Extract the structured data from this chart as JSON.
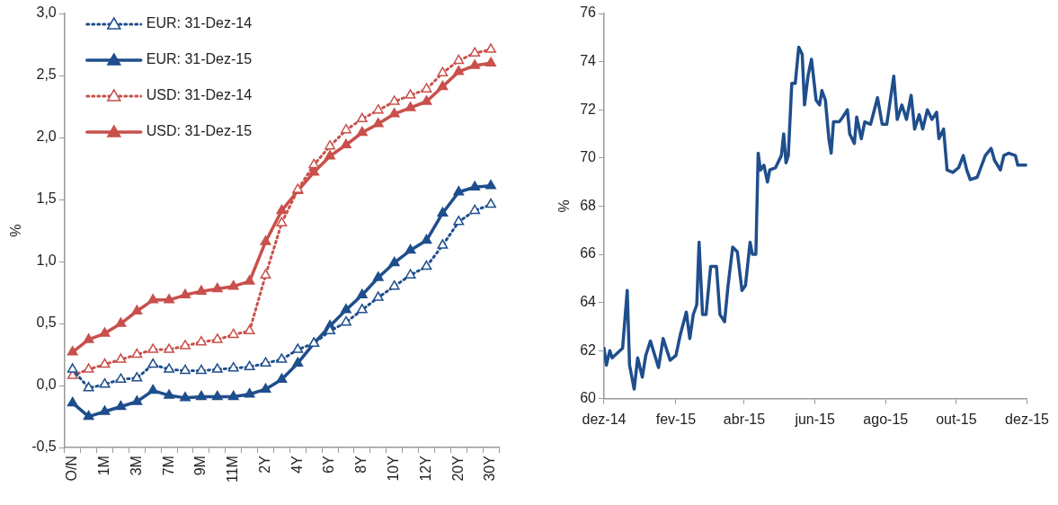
{
  "chart_data": [
    {
      "type": "line",
      "ylabel": "%",
      "legend": "top left",
      "marker": "triangle",
      "grid": false,
      "categories": [
        "O/N",
        null,
        "1M",
        null,
        "3M",
        null,
        "7M",
        null,
        "9M",
        null,
        "11M",
        null,
        "2Y",
        null,
        "4Y",
        null,
        "6Y",
        null,
        "8Y",
        null,
        "10Y",
        null,
        "12Y",
        null,
        "20Y",
        null,
        "30Y"
      ],
      "ylim": [
        -0.5,
        3.0
      ],
      "yticks": [
        {
          "value": -0.5,
          "label": "-0,5"
        },
        {
          "value": 0,
          "label": "0,0"
        },
        {
          "value": 0.5,
          "label": "0,5"
        },
        {
          "value": 1.0,
          "label": "1,0"
        },
        {
          "value": 1.5,
          "label": "1,5"
        },
        {
          "value": 2.0,
          "label": "2,0"
        },
        {
          "value": 2.5,
          "label": "2,5"
        },
        {
          "value": 3.0,
          "label": "3,0"
        }
      ],
      "series": [
        {
          "name": "EUR: 31-Dez-14",
          "color": "#1f4e8c",
          "line_style": "dotted",
          "values": [
            0.13,
            -0.02,
            0.01,
            0.05,
            0.06,
            0.17,
            0.13,
            0.12,
            0.12,
            0.13,
            0.14,
            0.15,
            0.18,
            0.21,
            0.29,
            0.34,
            0.44,
            0.51,
            0.61,
            0.71,
            0.8,
            0.89,
            0.96,
            1.13,
            1.32,
            1.41,
            1.46
          ]
        },
        {
          "name": "EUR: 31-Dez-15",
          "color": "#1f4e8c",
          "line_style": "solid",
          "values": [
            -0.14,
            -0.25,
            -0.21,
            -0.17,
            -0.13,
            -0.04,
            -0.08,
            -0.1,
            -0.09,
            -0.09,
            -0.09,
            -0.07,
            -0.03,
            0.05,
            0.18,
            0.34,
            0.48,
            0.61,
            0.73,
            0.87,
            0.99,
            1.09,
            1.17,
            1.39,
            1.56,
            1.6,
            1.61
          ]
        },
        {
          "name": "USD: 31-Dez-14",
          "color": "#c9504b",
          "line_style": "dotted",
          "values": [
            0.08,
            0.13,
            0.17,
            0.21,
            0.25,
            0.29,
            0.29,
            0.32,
            0.35,
            0.37,
            0.41,
            0.44,
            0.89,
            1.31,
            1.58,
            1.78,
            1.93,
            2.06,
            2.15,
            2.22,
            2.29,
            2.34,
            2.39,
            2.52,
            2.62,
            2.68,
            2.71
          ]
        },
        {
          "name": "USD: 31-Dez-15",
          "color": "#c9504b",
          "line_style": "solid",
          "values": [
            0.27,
            0.37,
            0.42,
            0.5,
            0.6,
            0.69,
            0.69,
            0.73,
            0.76,
            0.78,
            0.8,
            0.84,
            1.16,
            1.41,
            1.57,
            1.72,
            1.85,
            1.94,
            2.04,
            2.11,
            2.19,
            2.24,
            2.29,
            2.41,
            2.53,
            2.58,
            2.6
          ]
        }
      ]
    },
    {
      "type": "line",
      "ylabel": "%",
      "legend": false,
      "marker": "none",
      "grid": false,
      "color": "#1f4e8c",
      "xlim": [
        "2014-12-01",
        "2015-12-01"
      ],
      "xticks": [
        {
          "value": "2014-12-01",
          "label": "dez-14"
        },
        {
          "value": "2015-02-01",
          "label": "fev-15"
        },
        {
          "value": "2015-04-01",
          "label": "abr-15"
        },
        {
          "value": "2015-06-01",
          "label": "jun-15"
        },
        {
          "value": "2015-08-01",
          "label": "ago-15"
        },
        {
          "value": "2015-10-01",
          "label": "out-15"
        },
        {
          "value": "2015-12-01",
          "label": "dez-15"
        }
      ],
      "ylim": [
        60,
        76
      ],
      "yticks": [
        60,
        62,
        64,
        66,
        68,
        70,
        72,
        74,
        76
      ],
      "x": [
        "2014-12-01",
        "2014-12-03",
        "2014-12-06",
        "2014-12-08",
        "2014-12-17",
        "2014-12-21",
        "2014-12-23",
        "2014-12-27",
        "2014-12-30",
        "2015-01-03",
        "2015-01-06",
        "2015-01-10",
        "2015-01-17",
        "2015-01-21",
        "2015-01-27",
        "2015-02-01",
        "2015-02-05",
        "2015-02-10",
        "2015-02-13",
        "2015-02-16",
        "2015-02-19",
        "2015-02-21",
        "2015-02-24",
        "2015-02-27",
        "2015-03-03",
        "2015-03-08",
        "2015-03-11",
        "2015-03-15",
        "2015-03-18",
        "2015-03-22",
        "2015-03-26",
        "2015-03-30",
        "2015-04-02",
        "2015-04-06",
        "2015-04-08",
        "2015-04-11",
        "2015-04-13",
        "2015-04-15",
        "2015-04-18",
        "2015-04-21",
        "2015-04-23",
        "2015-04-28",
        "2015-05-03",
        "2015-05-05",
        "2015-05-07",
        "2015-05-09",
        "2015-05-12",
        "2015-05-15",
        "2015-05-18",
        "2015-05-21",
        "2015-05-23",
        "2015-05-26",
        "2015-05-29",
        "2015-06-02",
        "2015-06-05",
        "2015-06-07",
        "2015-06-10",
        "2015-06-13",
        "2015-06-15",
        "2015-06-17",
        "2015-06-22",
        "2015-06-25",
        "2015-06-29",
        "2015-07-01",
        "2015-07-05",
        "2015-07-07",
        "2015-07-11",
        "2015-07-14",
        "2015-07-19",
        "2015-07-25",
        "2015-07-29",
        "2015-08-02",
        "2015-08-08",
        "2015-08-11",
        "2015-08-15",
        "2015-08-19",
        "2015-08-23",
        "2015-08-26",
        "2015-08-30",
        "2015-09-02",
        "2015-09-06",
        "2015-09-10",
        "2015-09-14",
        "2015-09-16",
        "2015-09-20",
        "2015-09-23",
        "2015-09-28",
        "2015-10-03",
        "2015-10-07",
        "2015-10-10",
        "2015-10-13",
        "2015-10-19",
        "2015-10-26",
        "2015-10-31",
        "2015-11-03",
        "2015-11-08",
        "2015-11-11",
        "2015-11-15",
        "2015-11-21",
        "2015-11-23",
        "2015-12-01"
      ],
      "values": [
        62.1,
        61.4,
        62.0,
        61.7,
        62.1,
        64.5,
        61.4,
        60.4,
        61.7,
        60.9,
        61.8,
        62.4,
        61.3,
        62.5,
        61.6,
        61.8,
        62.7,
        63.6,
        62.5,
        63.5,
        63.9,
        66.5,
        63.5,
        63.5,
        65.5,
        65.5,
        63.5,
        63.2,
        64.7,
        66.3,
        66.1,
        64.5,
        64.7,
        66.5,
        66.0,
        66.0,
        70.2,
        69.5,
        69.7,
        69.0,
        69.5,
        69.6,
        70.1,
        71.0,
        69.8,
        70.1,
        73.1,
        73.1,
        74.6,
        74.3,
        72.2,
        73.4,
        74.1,
        72.4,
        72.2,
        72.8,
        72.4,
        70.8,
        70.2,
        71.5,
        71.5,
        71.7,
        72.0,
        71.0,
        70.6,
        71.7,
        70.8,
        71.5,
        71.4,
        72.5,
        71.4,
        71.4,
        73.4,
        71.6,
        72.2,
        71.6,
        72.6,
        71.2,
        71.8,
        71.2,
        72.0,
        71.6,
        71.9,
        70.8,
        71.2,
        69.5,
        69.4,
        69.6,
        70.1,
        69.5,
        69.1,
        69.2,
        70.1,
        70.4,
        69.9,
        69.5,
        70.1,
        70.2,
        70.1,
        69.7,
        69.7
      ]
    }
  ]
}
